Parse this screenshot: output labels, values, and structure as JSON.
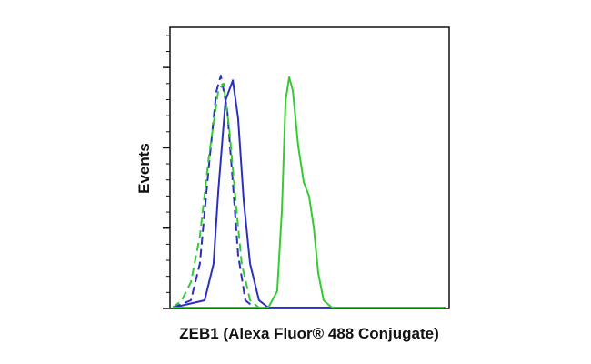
{
  "chart_data": {
    "type": "line",
    "xlabel": "ZEB1 (Alexa Fluor® 488 Conjugate)",
    "ylabel": "Events",
    "xlim": [
      0,
      100
    ],
    "ylim": [
      0,
      350
    ],
    "yticks": [
      0,
      100,
      200,
      300
    ],
    "yminorticks": [
      20,
      40,
      60,
      80,
      120,
      140,
      160,
      180,
      220,
      240,
      260,
      280,
      320,
      340
    ],
    "series": [
      {
        "color": "#2b2fc0",
        "dashed": true,
        "x": [
          1.0,
          7.5,
          10.7,
          14.0,
          16.6,
          18.2,
          20.5,
          22.5,
          24.4,
          27.0,
          30.3,
          98.7
        ],
        "values": [
          1.1,
          10.2,
          55.5,
          180,
          270,
          290,
          248,
          157,
          67,
          10.2,
          1.1,
          1.1
        ]
      },
      {
        "color": "#33cc33",
        "dashed": true,
        "x": [
          1.0,
          4.2,
          7.5,
          10.7,
          14.0,
          17.3,
          19.2,
          21.2,
          23.8,
          25.7,
          28.7,
          31.9,
          98.7
        ],
        "values": [
          1.1,
          10.2,
          32.8,
          89.5,
          191,
          271,
          280,
          225,
          123,
          55.5,
          10.2,
          1.1,
          1.1
        ]
      },
      {
        "color": "#2b2fc0",
        "dashed": false,
        "x": [
          1.0,
          12.4,
          15.6,
          17.3,
          19.9,
          22.5,
          24.4,
          26.4,
          28.7,
          31.9,
          35.2,
          98.7
        ],
        "values": [
          1.1,
          10.2,
          55.5,
          146,
          259,
          284,
          237,
          135,
          55.5,
          10.2,
          1.1,
          1.1
        ]
      },
      {
        "color": "#33cc33",
        "dashed": false,
        "x": [
          1.0,
          35.2,
          38.4,
          40.1,
          41.4,
          42.7,
          44.0,
          45.9,
          47.9,
          49.8,
          51.5,
          53.1,
          55.0,
          58.0,
          98.7
        ],
        "values": [
          1.1,
          1.1,
          21.5,
          123,
          259,
          288,
          271,
          203,
          157,
          140,
          101,
          44.2,
          10.2,
          1.1,
          1.1
        ]
      }
    ]
  }
}
